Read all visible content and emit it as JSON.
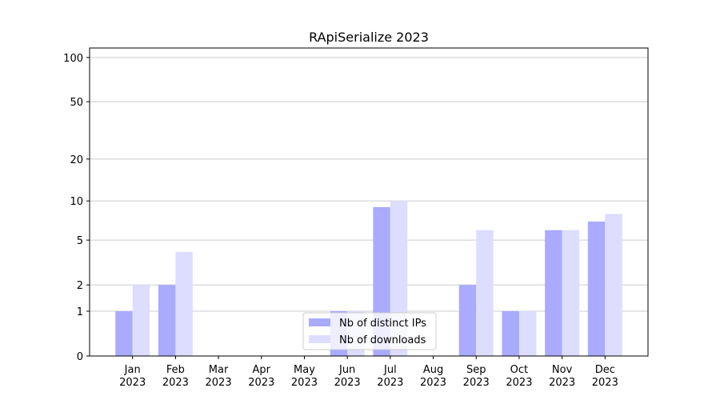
{
  "chart_data": {
    "type": "bar",
    "title": "RApiSerialize 2023",
    "categories": [
      [
        "Jan",
        "2023"
      ],
      [
        "Feb",
        "2023"
      ],
      [
        "Mar",
        "2023"
      ],
      [
        "Apr",
        "2023"
      ],
      [
        "May",
        "2023"
      ],
      [
        "Jun",
        "2023"
      ],
      [
        "Jul",
        "2023"
      ],
      [
        "Aug",
        "2023"
      ],
      [
        "Sep",
        "2023"
      ],
      [
        "Oct",
        "2023"
      ],
      [
        "Nov",
        "2023"
      ],
      [
        "Dec",
        "2023"
      ]
    ],
    "series": [
      {
        "name": "Nb of distinct IPs",
        "color": "#aaaaff",
        "values": [
          1,
          2,
          0,
          0,
          0,
          1,
          9,
          0,
          2,
          1,
          6,
          7
        ]
      },
      {
        "name": "Nb of downloads",
        "color": "#ddddff",
        "values": [
          2,
          4,
          0,
          0,
          0,
          1,
          10,
          0,
          6,
          1,
          6,
          8
        ]
      }
    ],
    "yscale": "log1p",
    "ylim": [
      0,
      116
    ],
    "yticks": [
      0,
      1,
      2,
      5,
      10,
      20,
      50,
      100
    ],
    "grid": true,
    "legend": "lower center"
  }
}
